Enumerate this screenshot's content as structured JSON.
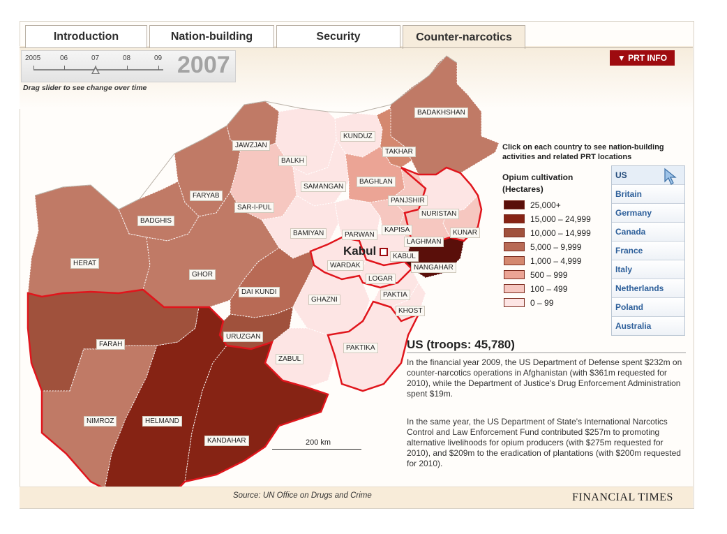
{
  "tabs": [
    {
      "label": "Introduction"
    },
    {
      "label": "Nation-building"
    },
    {
      "label": "Security"
    },
    {
      "label": "Counter-narcotics"
    }
  ],
  "slider": {
    "years": [
      "2005",
      "06",
      "07",
      "08",
      "09"
    ],
    "current_year": "2007",
    "hint": "Drag slider to see change over time"
  },
  "prt_button": "▼ PRT INFO",
  "click_note": "Click on each country to see nation-building activities and related PRT locations",
  "legend": {
    "title_line1": "Opium cultivation",
    "title_line2": "(Hectares)",
    "items": [
      {
        "label": "25,000+",
        "color": "#5a0f0a"
      },
      {
        "label": "15,000 – 24,999",
        "color": "#862314"
      },
      {
        "label": "10,000 – 14,999",
        "color": "#a0513c"
      },
      {
        "label": "5,000 – 9,999",
        "color": "#b86a55"
      },
      {
        "label": "1,000 – 4,999",
        "color": "#d4886f"
      },
      {
        "label": "500 – 999",
        "color": "#eba495"
      },
      {
        "label": "100 – 499",
        "color": "#f6c7c0"
      },
      {
        "label": "0 – 99",
        "color": "#fde5e4"
      }
    ]
  },
  "countries": [
    "US",
    "Britain",
    "Germany",
    "Canada",
    "France",
    "Italy",
    "Netherlands",
    "Poland",
    "Australia"
  ],
  "selected_country": "US",
  "map": {
    "provinces": [
      "BADAKHSHAN",
      "KUNDUZ",
      "TAKHAR",
      "JAWZJAN",
      "BALKH",
      "SAMANGAN",
      "BAGHLAN",
      "FARYAB",
      "SAR-I-PUL",
      "PANJSHIR",
      "NURISTAN",
      "BADGHIS",
      "BAMIYAN",
      "PARWAN",
      "KAPISA",
      "KUNAR",
      "LAGHMAN",
      "KABUL",
      "NANGAHAR",
      "HERAT",
      "GHOR",
      "WARDAK",
      "LOGAR",
      "DAI KUNDI",
      "PAKTIA",
      "GHAZNI",
      "KHOST",
      "URUZGAN",
      "FARAH",
      "ZABUL",
      "PAKTIKA",
      "NIMROZ",
      "HELMAND",
      "KANDAHAR"
    ],
    "capital": "Kabul",
    "scale": "200 km"
  },
  "detail": {
    "title": "US (troops: 45,780)",
    "para1": "In the financial year 2009, the US Department of Defense spent $232m on counter-narcotics operations in Afghanistan (with $361m requested for 2010), while the Department of Justice's Drug Enforcement Administration spent $19m.",
    "para2": "In the same year, the US Department of State's International Narcotics Control and Law Enforcement Fund contributed $257m to promoting alternative livelihoods for opium producers (with $275m requested for 2010), and $209m to the eradication of plantations (with $200m requested for 2010)."
  },
  "footer": {
    "source": "Source: UN Office on Drugs and Crime",
    "brand": "FINANCIAL TIMES"
  }
}
